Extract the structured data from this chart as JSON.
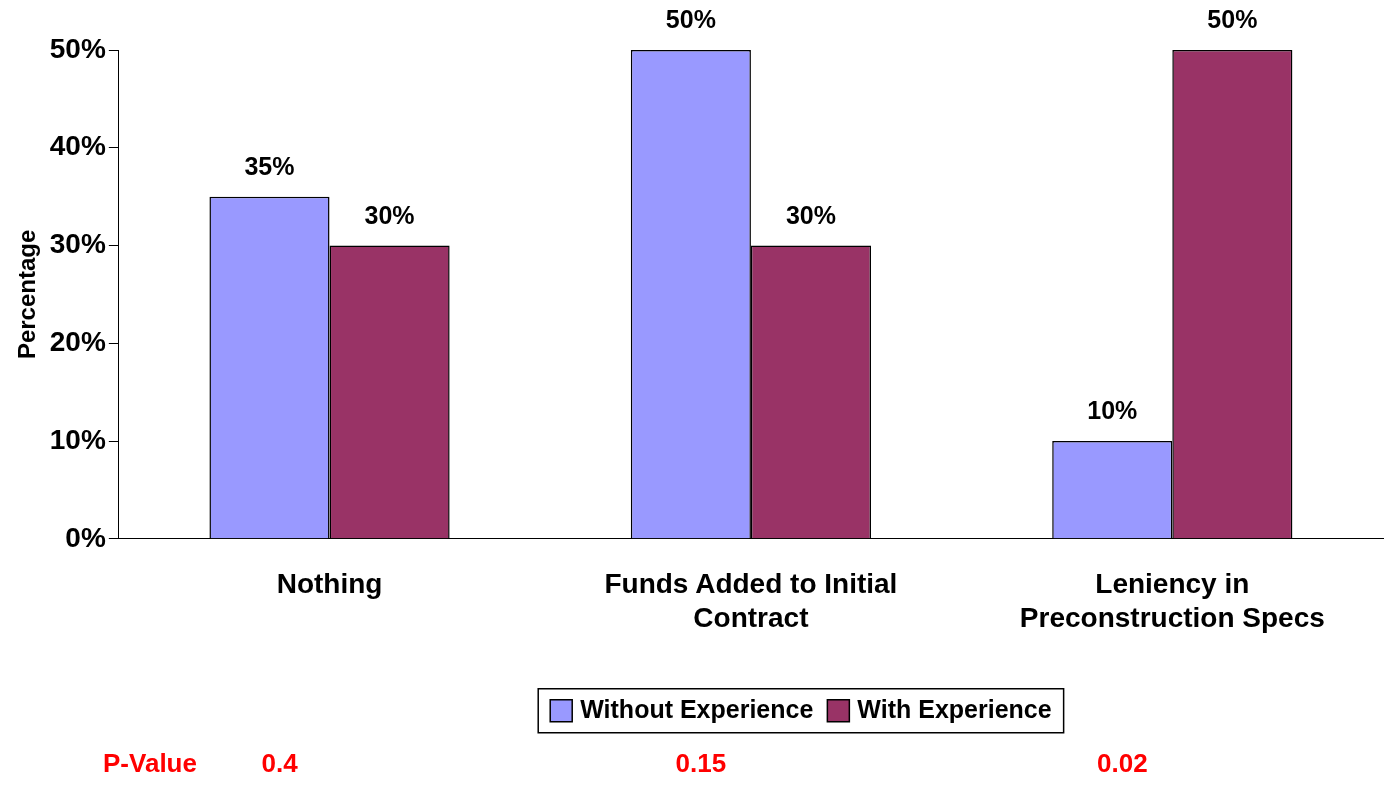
{
  "chart_data": {
    "type": "bar",
    "ylabel": "Percentage",
    "categories": [
      "Nothing",
      "Funds Added to Initial Contract",
      "Leniency in Preconstruction Specs"
    ],
    "series": [
      {
        "name": "Without Experience",
        "color": "#9999ff",
        "values": [
          35,
          50,
          10
        ],
        "value_labels": [
          "35%",
          "50%",
          "10%"
        ]
      },
      {
        "name": "With Experience",
        "color": "#993366",
        "values": [
          30,
          30,
          50
        ],
        "value_labels": [
          "30%",
          "30%",
          "50%"
        ]
      }
    ],
    "ylim": [
      0,
      50
    ],
    "yticks": [
      {
        "value": 0,
        "label": "0%"
      },
      {
        "value": 10,
        "label": "10%"
      },
      {
        "value": 20,
        "label": "20%"
      },
      {
        "value": 30,
        "label": "30%"
      },
      {
        "value": 40,
        "label": "40%"
      },
      {
        "value": 50,
        "label": "50%"
      }
    ],
    "grid": false,
    "legend": "bottom",
    "annotations": [
      "P-Value",
      "0.4",
      "0.15",
      "0.02"
    ]
  }
}
